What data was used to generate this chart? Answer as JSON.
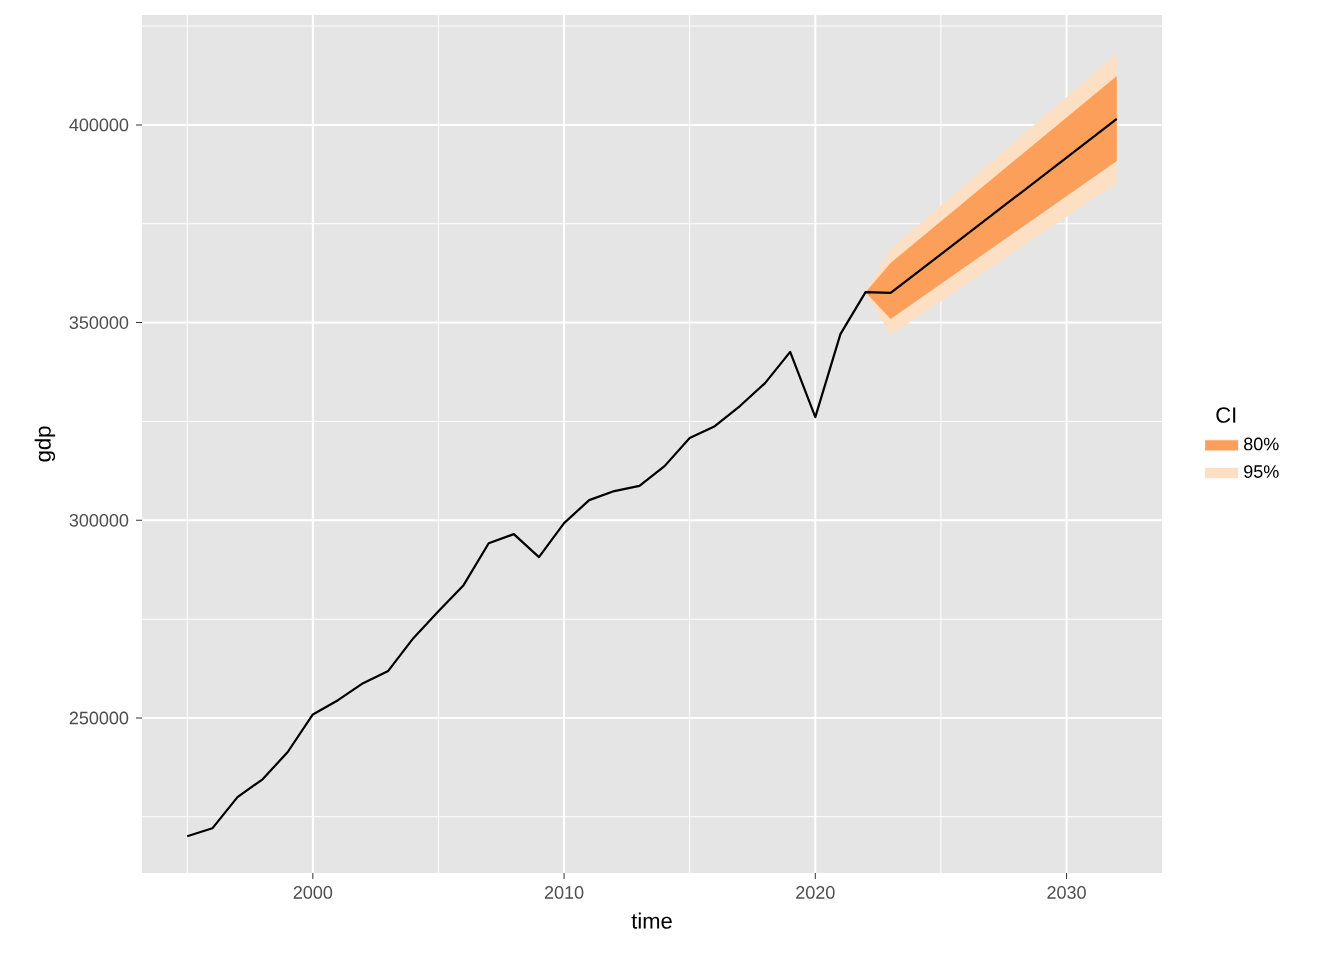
{
  "chart_data": {
    "type": "line",
    "xlabel": "time",
    "ylabel": "gdp",
    "legend_title": "CI",
    "legend": "right",
    "grid": true,
    "xlim": [
      1993.2,
      2033.8
    ],
    "ylim": [
      210800,
      427800
    ],
    "xticks": [
      2000,
      2010,
      2020,
      2030
    ],
    "yticks": [
      250000,
      300000,
      350000,
      400000
    ],
    "series": [
      {
        "color": "#000000",
        "x": [
          1995,
          1996,
          1997,
          1998,
          1999,
          2000,
          2001,
          2002,
          2003,
          2004,
          2005,
          2006,
          2007,
          2008,
          2009,
          2010,
          2011,
          2012,
          2013,
          2014,
          2015,
          2016,
          2017,
          2018,
          2019,
          2020,
          2021,
          2022,
          2023,
          2032
        ],
        "values": [
          220100,
          222100,
          230000,
          234500,
          241400,
          250900,
          254500,
          258800,
          261900,
          270200,
          277000,
          283600,
          294200,
          296500,
          290700,
          299300,
          305100,
          307400,
          308700,
          313700,
          320800,
          323800,
          328900,
          334700,
          342600,
          326100,
          347100,
          357700,
          357500,
          401500
        ]
      },
      {
        "type": "area",
        "name": "80%",
        "color": "#fc9f5b",
        "x": [
          2022,
          2023,
          2032
        ],
        "values": [
          null,
          null,
          null
        ],
        "lower": [
          357700,
          350900,
          390900
        ],
        "upper": [
          357700,
          365100,
          412400
        ]
      },
      {
        "type": "area",
        "name": "95%",
        "color": "#fddfc4",
        "x": [
          2022,
          2023,
          2032
        ],
        "values": [
          null,
          null,
          null
        ],
        "lower": [
          357700,
          346900,
          385300
        ],
        "upper": [
          357700,
          368600,
          418000
        ]
      }
    ]
  }
}
